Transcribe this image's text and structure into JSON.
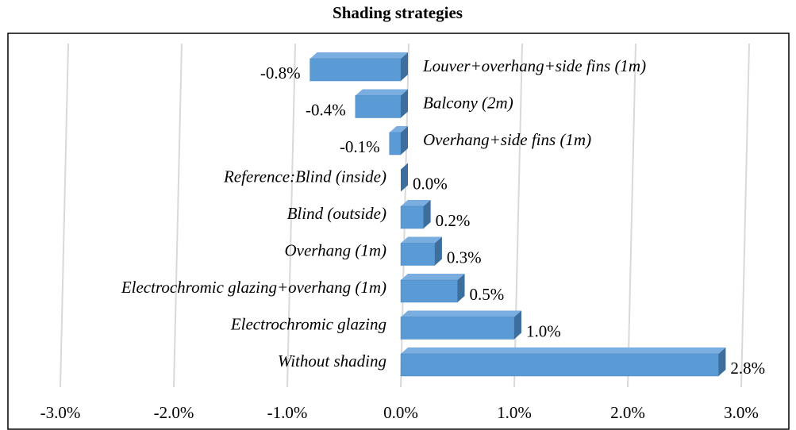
{
  "chart_data": {
    "type": "bar",
    "orientation": "horizontal",
    "title": "Shading strategies",
    "categories": [
      "Louver+overhang+side fins (1m)",
      "Balcony (2m)",
      "Overhang+side fins (1m)",
      "Reference:Blind (inside)",
      "Blind (outside)",
      "Overhang (1m)",
      "Electrochromic glazing+overhang (1m)",
      "Electrochromic glazing",
      "Without shading"
    ],
    "values": [
      -0.8,
      -0.4,
      -0.1,
      0.0,
      0.2,
      0.3,
      0.5,
      1.0,
      2.8
    ],
    "value_labels": [
      "-0.8%",
      "-0.4%",
      "-0.1%",
      "0.0%",
      "0.2%",
      "0.3%",
      "0.5%",
      "1.0%",
      "2.8%"
    ],
    "color": "#5b9bd5",
    "xlim": [
      -3,
      3
    ],
    "xticks": [
      {
        "value": -3,
        "label": "-3.0%"
      },
      {
        "value": -2,
        "label": "-2.0%"
      },
      {
        "value": -1,
        "label": "-1.0%"
      },
      {
        "value": 0,
        "label": "0.0%"
      },
      {
        "value": 1,
        "label": "1.0%"
      },
      {
        "value": 2,
        "label": "2.0%"
      },
      {
        "value": 3,
        "label": "3.0%"
      }
    ],
    "grid": true
  }
}
